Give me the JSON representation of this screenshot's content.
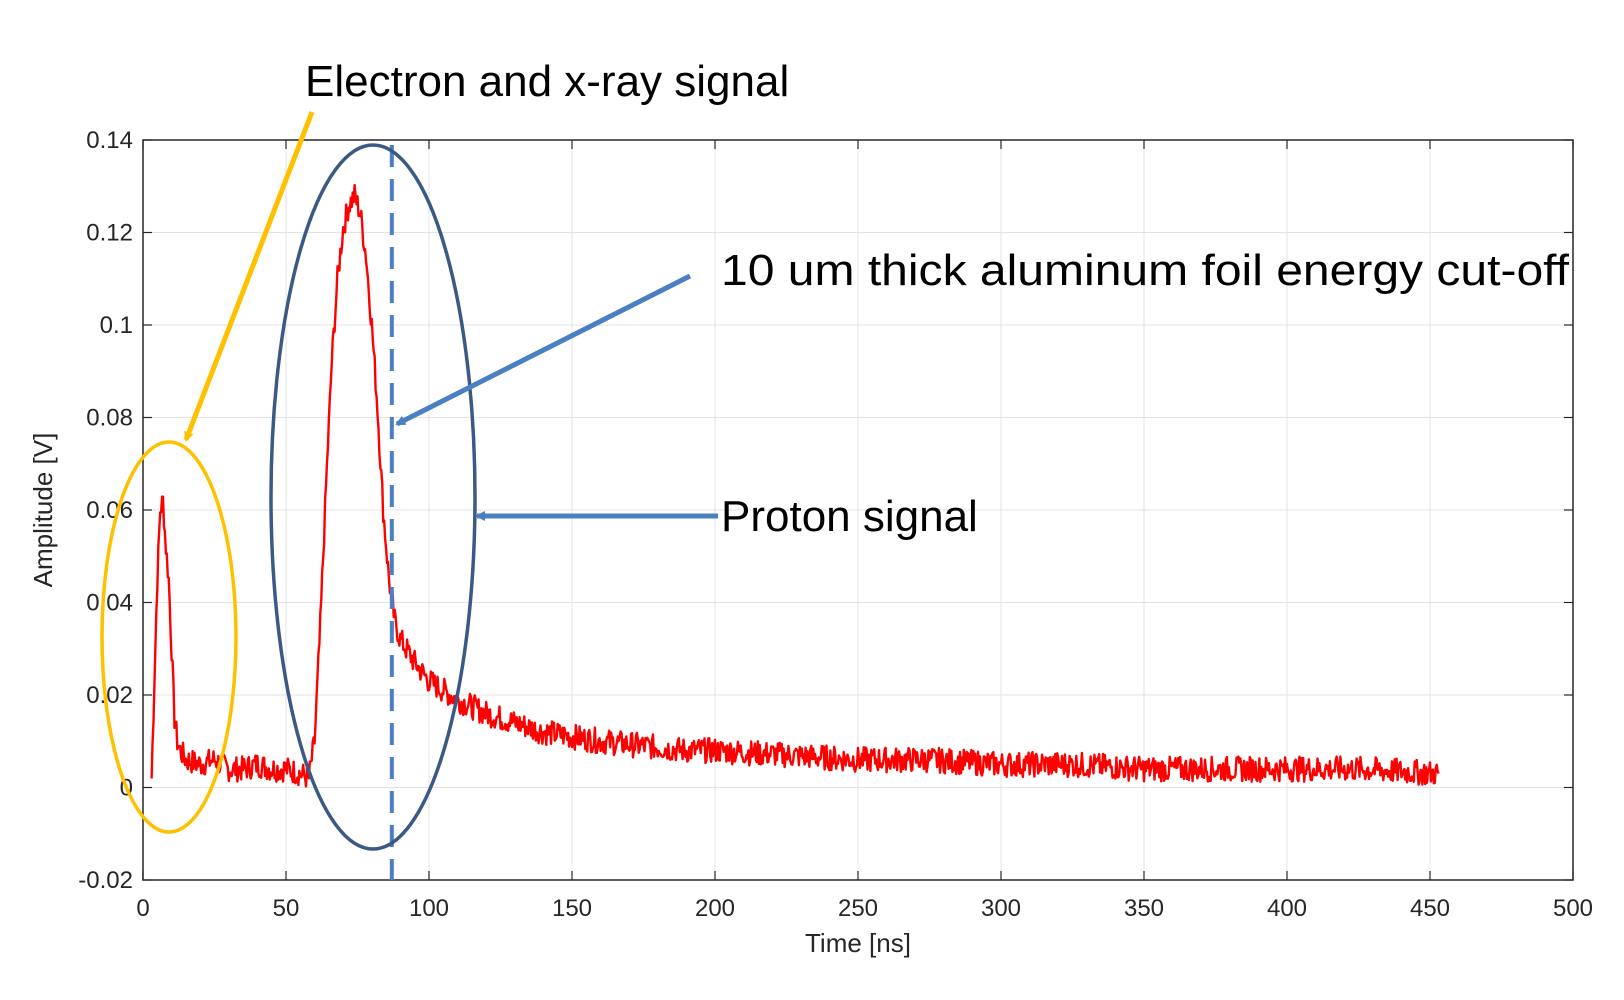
{
  "chart_data": {
    "type": "line",
    "xlabel": "Time [ns]",
    "ylabel": "Amplitude [V]",
    "xlim": [
      0,
      500
    ],
    "ylim": [
      -0.02,
      0.14
    ],
    "xticks": [
      0,
      50,
      100,
      150,
      200,
      250,
      300,
      350,
      400,
      450,
      500
    ],
    "xtick_labels": [
      "0",
      "50",
      "100",
      "150",
      "200",
      "250",
      "300",
      "350",
      "400",
      "450",
      "500"
    ],
    "yticks": [
      -0.02,
      0,
      0.02,
      0.04,
      0.06,
      0.08,
      0.1,
      0.12,
      0.14
    ],
    "ytick_labels": [
      "-0.02",
      "0",
      "0.02",
      "0.04",
      "0.06",
      "0.08",
      "0.1",
      "0.12",
      "0.14"
    ],
    "grid": true,
    "series": [
      {
        "color": "#ff0000",
        "x": [
          3,
          5,
          6,
          7,
          8,
          9,
          10,
          11,
          12,
          13,
          15,
          20,
          25,
          30,
          35,
          40,
          45,
          50,
          55,
          58,
          60,
          62,
          64,
          66,
          68,
          70,
          72,
          74,
          76,
          78,
          80,
          82,
          84,
          86,
          88,
          90,
          95,
          100,
          110,
          120,
          130,
          140,
          150,
          160,
          175,
          190,
          200,
          225,
          250,
          275,
          300,
          325,
          350,
          375,
          400,
          425,
          453
        ],
        "y": [
          0.002,
          0.045,
          0.06,
          0.062,
          0.052,
          0.045,
          0.03,
          0.015,
          0.01,
          0.008,
          0.006,
          0.005,
          0.006,
          0.004,
          0.004,
          0.005,
          0.004,
          0.004,
          0.003,
          0.002,
          0.01,
          0.035,
          0.065,
          0.092,
          0.11,
          0.121,
          0.126,
          0.128,
          0.124,
          0.115,
          0.1,
          0.082,
          0.06,
          0.045,
          0.036,
          0.032,
          0.027,
          0.023,
          0.019,
          0.016,
          0.014,
          0.012,
          0.011,
          0.01,
          0.009,
          0.008,
          0.008,
          0.007,
          0.006,
          0.006,
          0.005,
          0.005,
          0.004,
          0.004,
          0.004,
          0.004,
          0.003
        ]
      }
    ],
    "cutoff_line": {
      "x": 87,
      "color": "#4a7fc1",
      "style": "dashed"
    },
    "annotations": [
      {
        "text": "Electron and x-ray signal",
        "color": "#ffc000"
      },
      {
        "text": "10 um thick aluminum foil energy cut-off",
        "color": "#4a7fc1"
      },
      {
        "text": "Proton signal",
        "color": "#4a7fc1"
      }
    ],
    "ellipse_colors": {
      "electron": "#ffc000",
      "proton": "#3a5a85"
    }
  }
}
